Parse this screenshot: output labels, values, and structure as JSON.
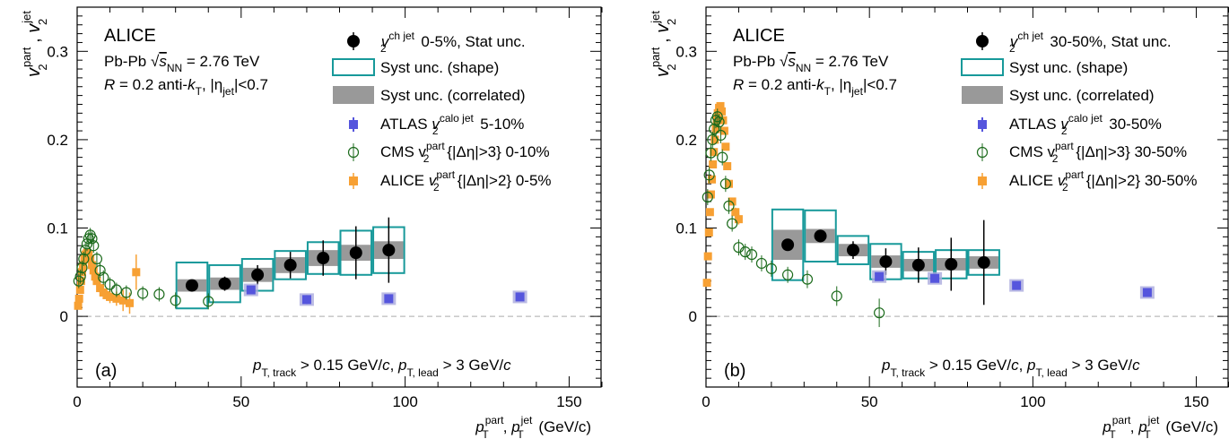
{
  "colors": {
    "alice_ch_jet": "#000000",
    "syst_shape": "#17999a",
    "syst_corr": "#999999",
    "atlas": "#5555dd",
    "cms": "#1c6b1c",
    "alice_part": "#f7a033",
    "zero_line": "#bbbbbb"
  },
  "chart_data": [
    {
      "type": "scatter",
      "panel_label": "(a)",
      "experiment": "ALICE",
      "system": {
        "prefix": "Pb-Pb ",
        "sqrt": "s",
        "sub": "NN",
        "value": " = 2.76 TeV"
      },
      "jet_def": {
        "r": "R",
        "text1": " = 0.2 anti-",
        "k": "k",
        "t_sub": "T",
        "text2": ", |η",
        "jet_sub": "jet",
        "text3": "|<0.7"
      },
      "cuts": {
        "p": "p",
        "sub1": "T, track",
        "t1": " > 0.15 GeV/",
        "c1": "c",
        "t2": ", ",
        "p2": "p",
        "sub2": "T, lead",
        "t3": " > 3 GeV/",
        "c2": "c"
      },
      "xlabel": {
        "p": "p",
        "sup1": "part",
        "sub1": "T",
        "comma": ", ",
        "p2": "p",
        "sup2": "jet",
        "sub2": "T",
        "unit": " (GeV/c)"
      },
      "ylabel": {
        "v": "v",
        "sup1": "part",
        "sub1": "2",
        "comma": " , ",
        "v2": "v",
        "sup2": "jet",
        "sub2": "2"
      },
      "xlim": [
        0,
        160
      ],
      "ylim": [
        -0.08,
        0.35
      ],
      "x_ticks": [
        "0",
        "50",
        "100",
        "150"
      ],
      "y_ticks": [
        "0",
        "0.1",
        "0.2",
        "0.3"
      ],
      "legend": {
        "alice_ch": {
          "sup": "ch jet",
          "text": " 0-5%, Stat unc."
        },
        "syst_shape": "Syst unc. (shape)",
        "syst_corr": "Syst unc. (correlated)",
        "atlas": {
          "name": "ATLAS ",
          "v": "v",
          "sup": "calo jet",
          "text": " 5-10%"
        },
        "cms": {
          "name": "CMS v",
          "sup": "part",
          "text": "{|Δη|>3} 0-10%"
        },
        "alice_part": {
          "name": "ALICE ",
          "v": "v",
          "sup": "part",
          "text": "{|Δη|>2} 0-5%"
        }
      },
      "series": [
        {
          "key": "alice_ch_jet",
          "x": [
            35,
            45,
            55,
            65,
            75,
            85,
            95
          ],
          "y": [
            0.035,
            0.037,
            0.047,
            0.058,
            0.066,
            0.072,
            0.075
          ],
          "stat": [
            0.006,
            0.008,
            0.011,
            0.015,
            0.02,
            0.03,
            0.037
          ],
          "xhalf": [
            5,
            5,
            5,
            5,
            5,
            5,
            5
          ],
          "syst_shape": [
            0.026,
            0.021,
            0.018,
            0.016,
            0.018,
            0.025,
            0.026
          ],
          "syst_corr": [
            0.007,
            0.007,
            0.008,
            0.009,
            0.009,
            0.009,
            0.01
          ]
        },
        {
          "key": "atlas",
          "x": [
            53,
            70,
            95,
            135
          ],
          "y": [
            0.03,
            0.019,
            0.02,
            0.022
          ],
          "err": [
            0.004,
            0.005,
            0.003,
            0.003
          ]
        },
        {
          "key": "cms",
          "x": [
            0.5,
            1.0,
            1.5,
            2.0,
            2.5,
            3.0,
            3.5,
            4.0,
            4.5,
            5.0,
            6.0,
            7.0,
            8.0,
            10.0,
            12.0,
            15.0,
            20.0,
            25.0,
            30.0,
            40.0
          ],
          "y": [
            0.04,
            0.045,
            0.055,
            0.065,
            0.075,
            0.082,
            0.088,
            0.092,
            0.088,
            0.08,
            0.065,
            0.052,
            0.044,
            0.036,
            0.03,
            0.027,
            0.026,
            0.025,
            0.018,
            0.017
          ],
          "err": [
            0.002,
            0.002,
            0.002,
            0.002,
            0.002,
            0.002,
            0.002,
            0.002,
            0.002,
            0.002,
            0.002,
            0.002,
            0.002,
            0.002,
            0.002,
            0.002,
            0.002,
            0.002,
            0.003,
            0.003
          ]
        },
        {
          "key": "alice_part",
          "x": [
            0.3,
            0.6,
            0.9,
            1.2,
            1.5,
            1.8,
            2.2,
            2.6,
            3.0,
            3.5,
            4.0,
            4.5,
            5.0,
            5.5,
            6.0,
            7.0,
            8.0,
            9.0,
            10.0,
            12.0,
            14.0,
            16.0,
            18.0
          ],
          "y": [
            0.012,
            0.02,
            0.03,
            0.04,
            0.05,
            0.058,
            0.065,
            0.07,
            0.072,
            0.07,
            0.065,
            0.058,
            0.052,
            0.045,
            0.04,
            0.032,
            0.027,
            0.024,
            0.022,
            0.02,
            0.018,
            0.015,
            0.05
          ],
          "err": [
            0.001,
            0.001,
            0.001,
            0.001,
            0.001,
            0.001,
            0.001,
            0.001,
            0.001,
            0.001,
            0.002,
            0.002,
            0.002,
            0.003,
            0.003,
            0.004,
            0.005,
            0.006,
            0.007,
            0.008,
            0.012,
            0.012,
            0.02
          ]
        }
      ]
    },
    {
      "type": "scatter",
      "panel_label": "(b)",
      "experiment": "ALICE",
      "system": {
        "prefix": "Pb-Pb ",
        "sqrt": "s",
        "sub": "NN",
        "value": " = 2.76 TeV"
      },
      "jet_def": {
        "r": "R",
        "text1": " = 0.2 anti-",
        "k": "k",
        "t_sub": "T",
        "text2": ", |η",
        "jet_sub": "jet",
        "text3": "|<0.7"
      },
      "cuts": {
        "p": "p",
        "sub1": "T, track",
        "t1": " > 0.15 GeV/",
        "c1": "c",
        "t2": ", ",
        "p2": "p",
        "sub2": "T, lead",
        "t3": " > 3 GeV/",
        "c2": "c"
      },
      "xlabel": {
        "p": "p",
        "sup1": "part",
        "sub1": "T",
        "comma": ", ",
        "p2": "p",
        "sup2": "jet",
        "sub2": "T",
        "unit": " (GeV/c)"
      },
      "ylabel": {
        "v": "v",
        "sup1": "part",
        "sub1": "2",
        "comma": " , ",
        "v2": "v",
        "sup2": "jet",
        "sub2": "2"
      },
      "xlim": [
        0,
        160
      ],
      "ylim": [
        -0.08,
        0.35
      ],
      "x_ticks": [
        "0",
        "50",
        "100",
        "150"
      ],
      "y_ticks": [
        "0",
        "0.1",
        "0.2",
        "0.3"
      ],
      "legend": {
        "alice_ch": {
          "sup": "ch jet",
          "text": " 30-50%, Stat unc."
        },
        "syst_shape": "Syst unc. (shape)",
        "syst_corr": "Syst unc. (correlated)",
        "atlas": {
          "name": "ATLAS ",
          "v": "v",
          "sup": "calo jet",
          "text": " 30-50%"
        },
        "cms": {
          "name": "CMS v",
          "sup": "part",
          "text": "{|Δη|>3} 30-50%"
        },
        "alice_part": {
          "name": "ALICE ",
          "v": "v",
          "sup": "part",
          "text": "{|Δη|>2} 30-50%"
        }
      },
      "series": [
        {
          "key": "alice_ch_jet",
          "x": [
            25,
            35,
            45,
            55,
            65,
            75,
            85
          ],
          "y": [
            0.081,
            0.091,
            0.075,
            0.062,
            0.058,
            0.059,
            0.061
          ],
          "stat": [
            0.005,
            0.007,
            0.01,
            0.015,
            0.02,
            0.03,
            0.048
          ],
          "xhalf": [
            5,
            5,
            5,
            5,
            5,
            5,
            5
          ],
          "syst_shape": [
            0.04,
            0.029,
            0.016,
            0.02,
            0.015,
            0.016,
            0.014
          ],
          "syst_corr": [
            0.017,
            0.008,
            0.007,
            0.007,
            0.007,
            0.007,
            0.007
          ]
        },
        {
          "key": "atlas",
          "x": [
            53,
            70,
            95,
            135
          ],
          "y": [
            0.045,
            0.043,
            0.035,
            0.027
          ],
          "err": [
            0.004,
            0.004,
            0.003,
            0.003
          ]
        },
        {
          "key": "cms",
          "x": [
            0.5,
            1.0,
            1.5,
            2.0,
            2.5,
            3.0,
            3.5,
            4.0,
            4.5,
            5.0,
            6.0,
            7.0,
            8.0,
            10.0,
            12.0,
            14.0,
            17.0,
            20.0,
            25.0,
            31.0,
            40.0,
            53.0
          ],
          "y": [
            0.135,
            0.16,
            0.185,
            0.2,
            0.212,
            0.222,
            0.226,
            0.22,
            0.205,
            0.18,
            0.15,
            0.125,
            0.105,
            0.078,
            0.073,
            0.07,
            0.06,
            0.054,
            0.047,
            0.042,
            0.023,
            0.004
          ],
          "err": [
            0.003,
            0.003,
            0.003,
            0.003,
            0.003,
            0.003,
            0.003,
            0.003,
            0.003,
            0.003,
            0.003,
            0.003,
            0.003,
            0.003,
            0.003,
            0.003,
            0.003,
            0.003,
            0.003,
            0.004,
            0.005,
            0.01
          ]
        },
        {
          "key": "alice_part",
          "x": [
            0.3,
            0.6,
            0.9,
            1.2,
            1.5,
            1.8,
            2.1,
            2.4,
            2.7,
            3.0,
            3.3,
            3.6,
            4.0,
            4.4,
            4.8,
            5.2,
            5.6,
            6.0,
            6.5,
            7.0,
            8.0,
            9.0,
            10.0
          ],
          "y": [
            0.038,
            0.068,
            0.095,
            0.118,
            0.138,
            0.155,
            0.172,
            0.186,
            0.2,
            0.212,
            0.222,
            0.23,
            0.236,
            0.238,
            0.232,
            0.222,
            0.21,
            0.192,
            0.17,
            0.15,
            0.13,
            0.118,
            0.11
          ],
          "err": [
            0.002,
            0.002,
            0.002,
            0.002,
            0.002,
            0.002,
            0.002,
            0.002,
            0.002,
            0.002,
            0.002,
            0.002,
            0.002,
            0.002,
            0.002,
            0.002,
            0.002,
            0.003,
            0.003,
            0.003,
            0.004,
            0.005,
            0.006
          ]
        }
      ]
    }
  ]
}
